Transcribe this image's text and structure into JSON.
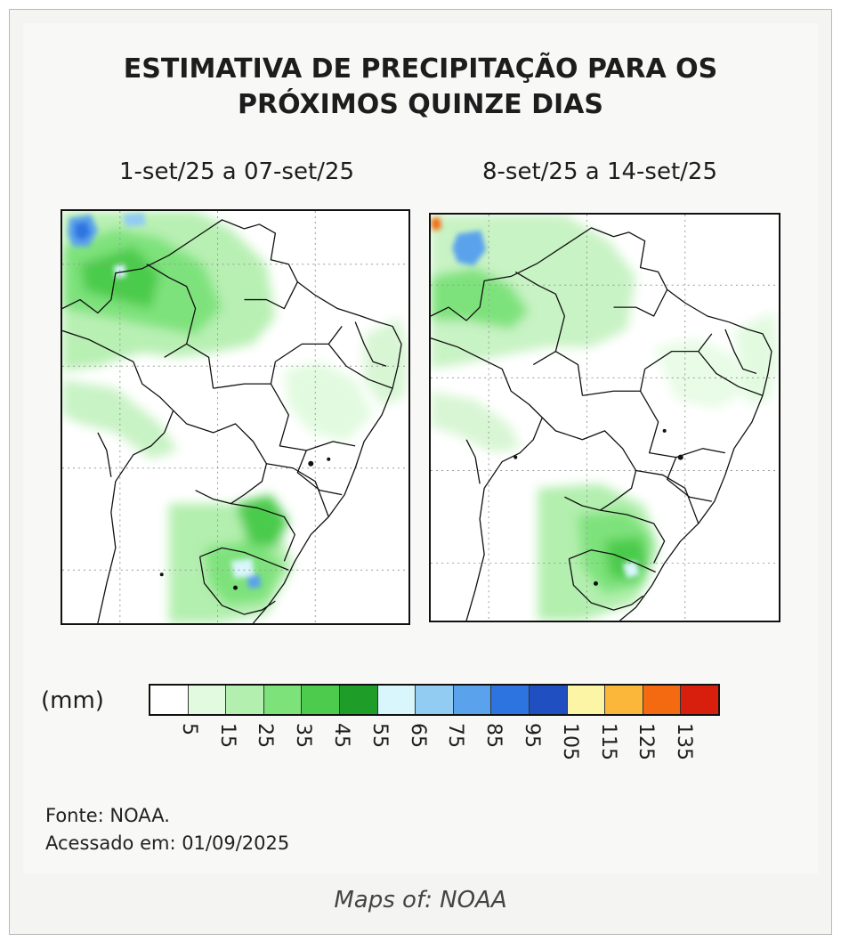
{
  "title": {
    "line1": "ESTIMATIVA DE PRECIPITAÇÃO PARA OS",
    "line2": "PRÓXIMOS QUINZE DIAS"
  },
  "maps": [
    {
      "period": "1-set/25 a 07-set/25"
    },
    {
      "period": "8-set/25 a 14-set/25"
    }
  ],
  "legend": {
    "unit": "(mm)",
    "colors": [
      "#ffffff",
      "#e2fbe0",
      "#b3efaf",
      "#7ee27b",
      "#4ccb4c",
      "#1e9e28",
      "#d8f6fb",
      "#93ccf3",
      "#5aa3ec",
      "#2d74e0",
      "#1f4fc0",
      "#fdf5a6",
      "#fbb73a",
      "#f46a10",
      "#d81e0c"
    ],
    "ticks": [
      "5",
      "15",
      "25",
      "35",
      "45",
      "55",
      "65",
      "75",
      "85",
      "95",
      "105",
      "115",
      "125",
      "135"
    ]
  },
  "source": {
    "line1": "Fonte: NOAA.",
    "line2": "Acessado em: 01/09/2025"
  },
  "caption": "Maps of: NOAA"
}
